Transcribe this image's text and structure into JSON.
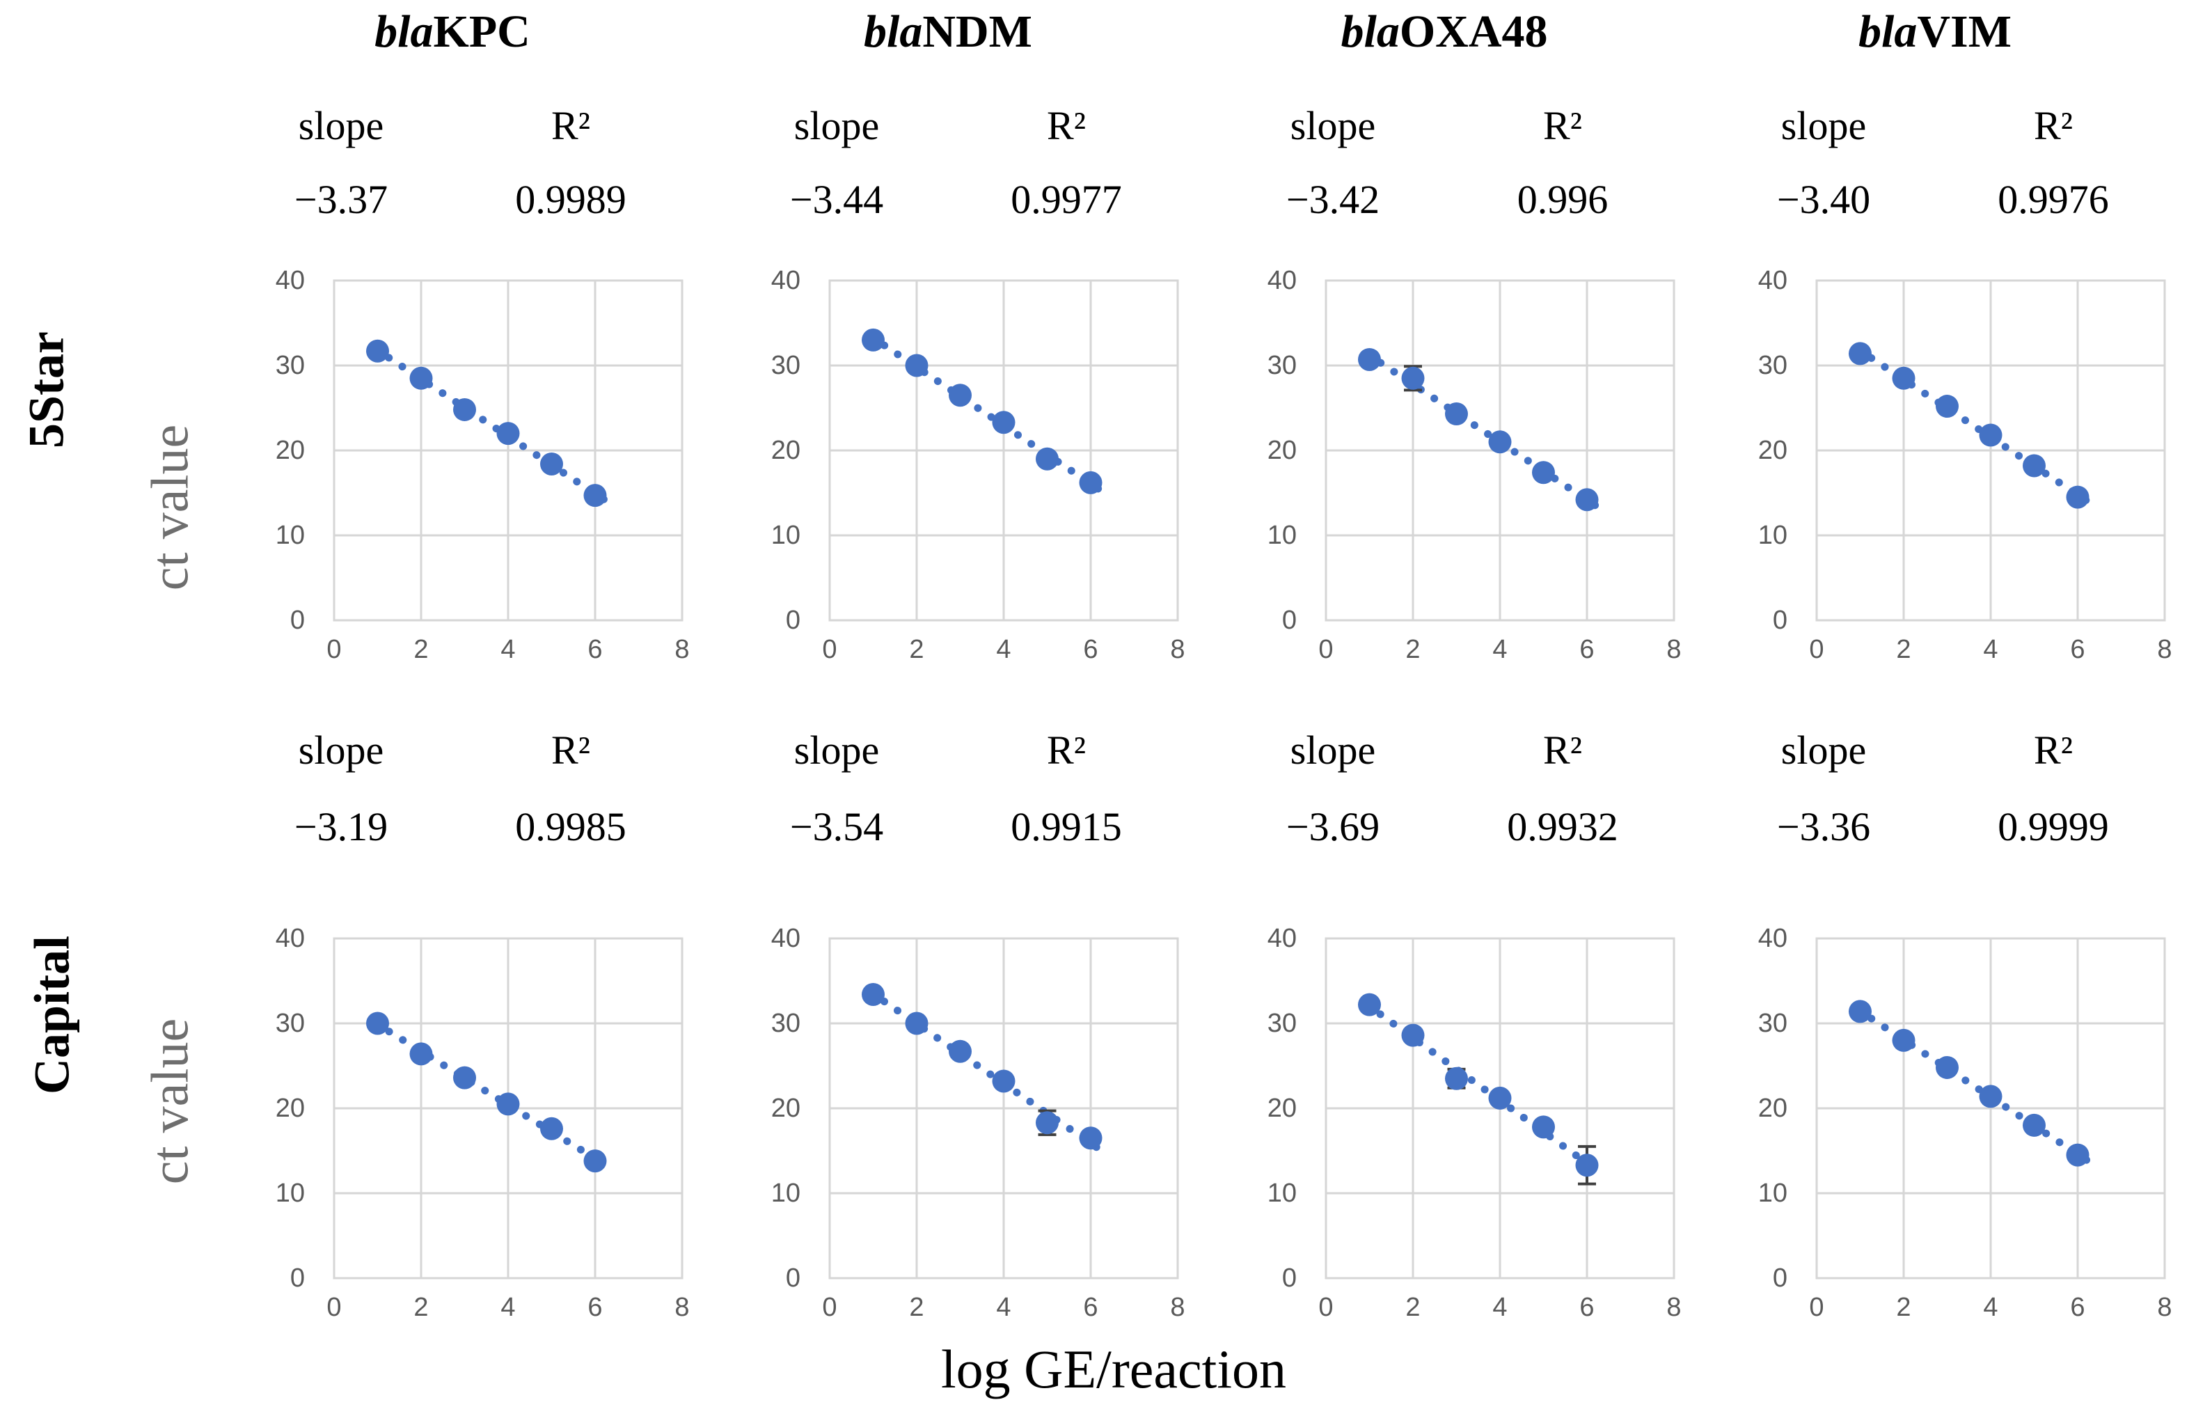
{
  "figure": {
    "row_groups": [
      {
        "label": "5Star",
        "y_axis_label": "ct value"
      },
      {
        "label": "Capital",
        "y_axis_label": "ct value"
      }
    ],
    "columns": [
      {
        "gene_prefix": "bla",
        "gene_name": "KPC"
      },
      {
        "gene_prefix": "bla",
        "gene_name": "NDM"
      },
      {
        "gene_prefix": "bla",
        "gene_name": "OXA48"
      },
      {
        "gene_prefix": "bla",
        "gene_name": "VIM"
      }
    ],
    "stats_labels": {
      "slope": "slope",
      "r2": "R²"
    },
    "x_axis_title": "log GE/reaction",
    "colors": {
      "marker": "#4472C4",
      "grid": "#D6D6D6",
      "tick_text": "#595959",
      "axis_label_text": "#6E6E6E",
      "error_bar": "#404040"
    }
  },
  "chart_data": [
    {
      "type": "scatter",
      "row": "5Star",
      "gene": "blaKPC",
      "slope": "−3.37",
      "r2": "0.9989",
      "x": [
        1,
        2,
        3,
        4,
        5,
        6
      ],
      "y": [
        31.7,
        28.5,
        24.8,
        22.0,
        18.4,
        14.7
      ],
      "error_bars": [],
      "xlim": [
        0,
        8
      ],
      "ylim": [
        0,
        40
      ],
      "x_ticks": [
        0,
        2,
        4,
        6,
        8
      ],
      "y_ticks": [
        0,
        10,
        20,
        30,
        40
      ],
      "trendline": "dotted-linear"
    },
    {
      "type": "scatter",
      "row": "5Star",
      "gene": "blaNDM",
      "slope": "−3.44",
      "r2": "0.9977",
      "x": [
        1,
        2,
        3,
        4,
        5,
        6
      ],
      "y": [
        33.0,
        30.0,
        26.5,
        23.3,
        19.0,
        16.2
      ],
      "error_bars": [],
      "xlim": [
        0,
        8
      ],
      "ylim": [
        0,
        40
      ],
      "x_ticks": [
        0,
        2,
        4,
        6,
        8
      ],
      "y_ticks": [
        0,
        10,
        20,
        30,
        40
      ],
      "trendline": "dotted-linear"
    },
    {
      "type": "scatter",
      "row": "5Star",
      "gene": "blaOXA48",
      "slope": "−3.42",
      "r2": "0.996",
      "x": [
        1,
        2,
        3,
        4,
        5,
        6
      ],
      "y": [
        30.7,
        28.5,
        24.3,
        21.0,
        17.4,
        14.2
      ],
      "error_bars": [
        {
          "x": 2,
          "plus": 1.4,
          "minus": 1.4
        }
      ],
      "xlim": [
        0,
        8
      ],
      "ylim": [
        0,
        40
      ],
      "x_ticks": [
        0,
        2,
        4,
        6,
        8
      ],
      "y_ticks": [
        0,
        10,
        20,
        30,
        40
      ],
      "trendline": "dotted-linear"
    },
    {
      "type": "scatter",
      "row": "5Star",
      "gene": "blaVIM",
      "slope": "−3.40",
      "r2": "0.9976",
      "x": [
        1,
        2,
        3,
        4,
        5,
        6
      ],
      "y": [
        31.4,
        28.5,
        25.2,
        21.8,
        18.2,
        14.5
      ],
      "error_bars": [],
      "xlim": [
        0,
        8
      ],
      "ylim": [
        0,
        40
      ],
      "x_ticks": [
        0,
        2,
        4,
        6,
        8
      ],
      "y_ticks": [
        0,
        10,
        20,
        30,
        40
      ],
      "trendline": "dotted-linear"
    },
    {
      "type": "scatter",
      "row": "Capital",
      "gene": "blaKPC",
      "slope": "−3.19",
      "r2": "0.9985",
      "x": [
        1,
        2,
        3,
        4,
        5,
        6
      ],
      "y": [
        30.0,
        26.4,
        23.6,
        20.5,
        17.6,
        13.8
      ],
      "error_bars": [],
      "xlim": [
        0,
        8
      ],
      "ylim": [
        0,
        40
      ],
      "x_ticks": [
        0,
        2,
        4,
        6,
        8
      ],
      "y_ticks": [
        0,
        10,
        20,
        30,
        40
      ],
      "trendline": "dotted-linear"
    },
    {
      "type": "scatter",
      "row": "Capital",
      "gene": "blaNDM",
      "slope": "−3.54",
      "r2": "0.9915",
      "x": [
        1,
        2,
        3,
        4,
        5,
        6
      ],
      "y": [
        33.4,
        30.0,
        26.7,
        23.2,
        18.3,
        16.5
      ],
      "error_bars": [
        {
          "x": 5,
          "plus": 1.4,
          "minus": 1.4
        }
      ],
      "xlim": [
        0,
        8
      ],
      "ylim": [
        0,
        40
      ],
      "x_ticks": [
        0,
        2,
        4,
        6,
        8
      ],
      "y_ticks": [
        0,
        10,
        20,
        30,
        40
      ],
      "trendline": "dotted-linear"
    },
    {
      "type": "scatter",
      "row": "Capital",
      "gene": "blaOXA48",
      "slope": "−3.69",
      "r2": "0.9932",
      "x": [
        1,
        2,
        3,
        4,
        5,
        6
      ],
      "y": [
        32.2,
        28.6,
        23.5,
        21.2,
        17.8,
        13.3
      ],
      "error_bars": [
        {
          "x": 3,
          "plus": 1.1,
          "minus": 1.1
        },
        {
          "x": 6,
          "plus": 2.2,
          "minus": 2.2
        }
      ],
      "xlim": [
        0,
        8
      ],
      "ylim": [
        0,
        40
      ],
      "x_ticks": [
        0,
        2,
        4,
        6,
        8
      ],
      "y_ticks": [
        0,
        10,
        20,
        30,
        40
      ],
      "trendline": "dotted-linear"
    },
    {
      "type": "scatter",
      "row": "Capital",
      "gene": "blaVIM",
      "slope": "−3.36",
      "r2": "0.9999",
      "x": [
        1,
        2,
        3,
        4,
        5,
        6
      ],
      "y": [
        31.4,
        28.0,
        24.8,
        21.4,
        18.0,
        14.5
      ],
      "error_bars": [],
      "xlim": [
        0,
        8
      ],
      "ylim": [
        0,
        40
      ],
      "x_ticks": [
        0,
        2,
        4,
        6,
        8
      ],
      "y_ticks": [
        0,
        10,
        20,
        30,
        40
      ],
      "trendline": "dotted-linear"
    }
  ]
}
